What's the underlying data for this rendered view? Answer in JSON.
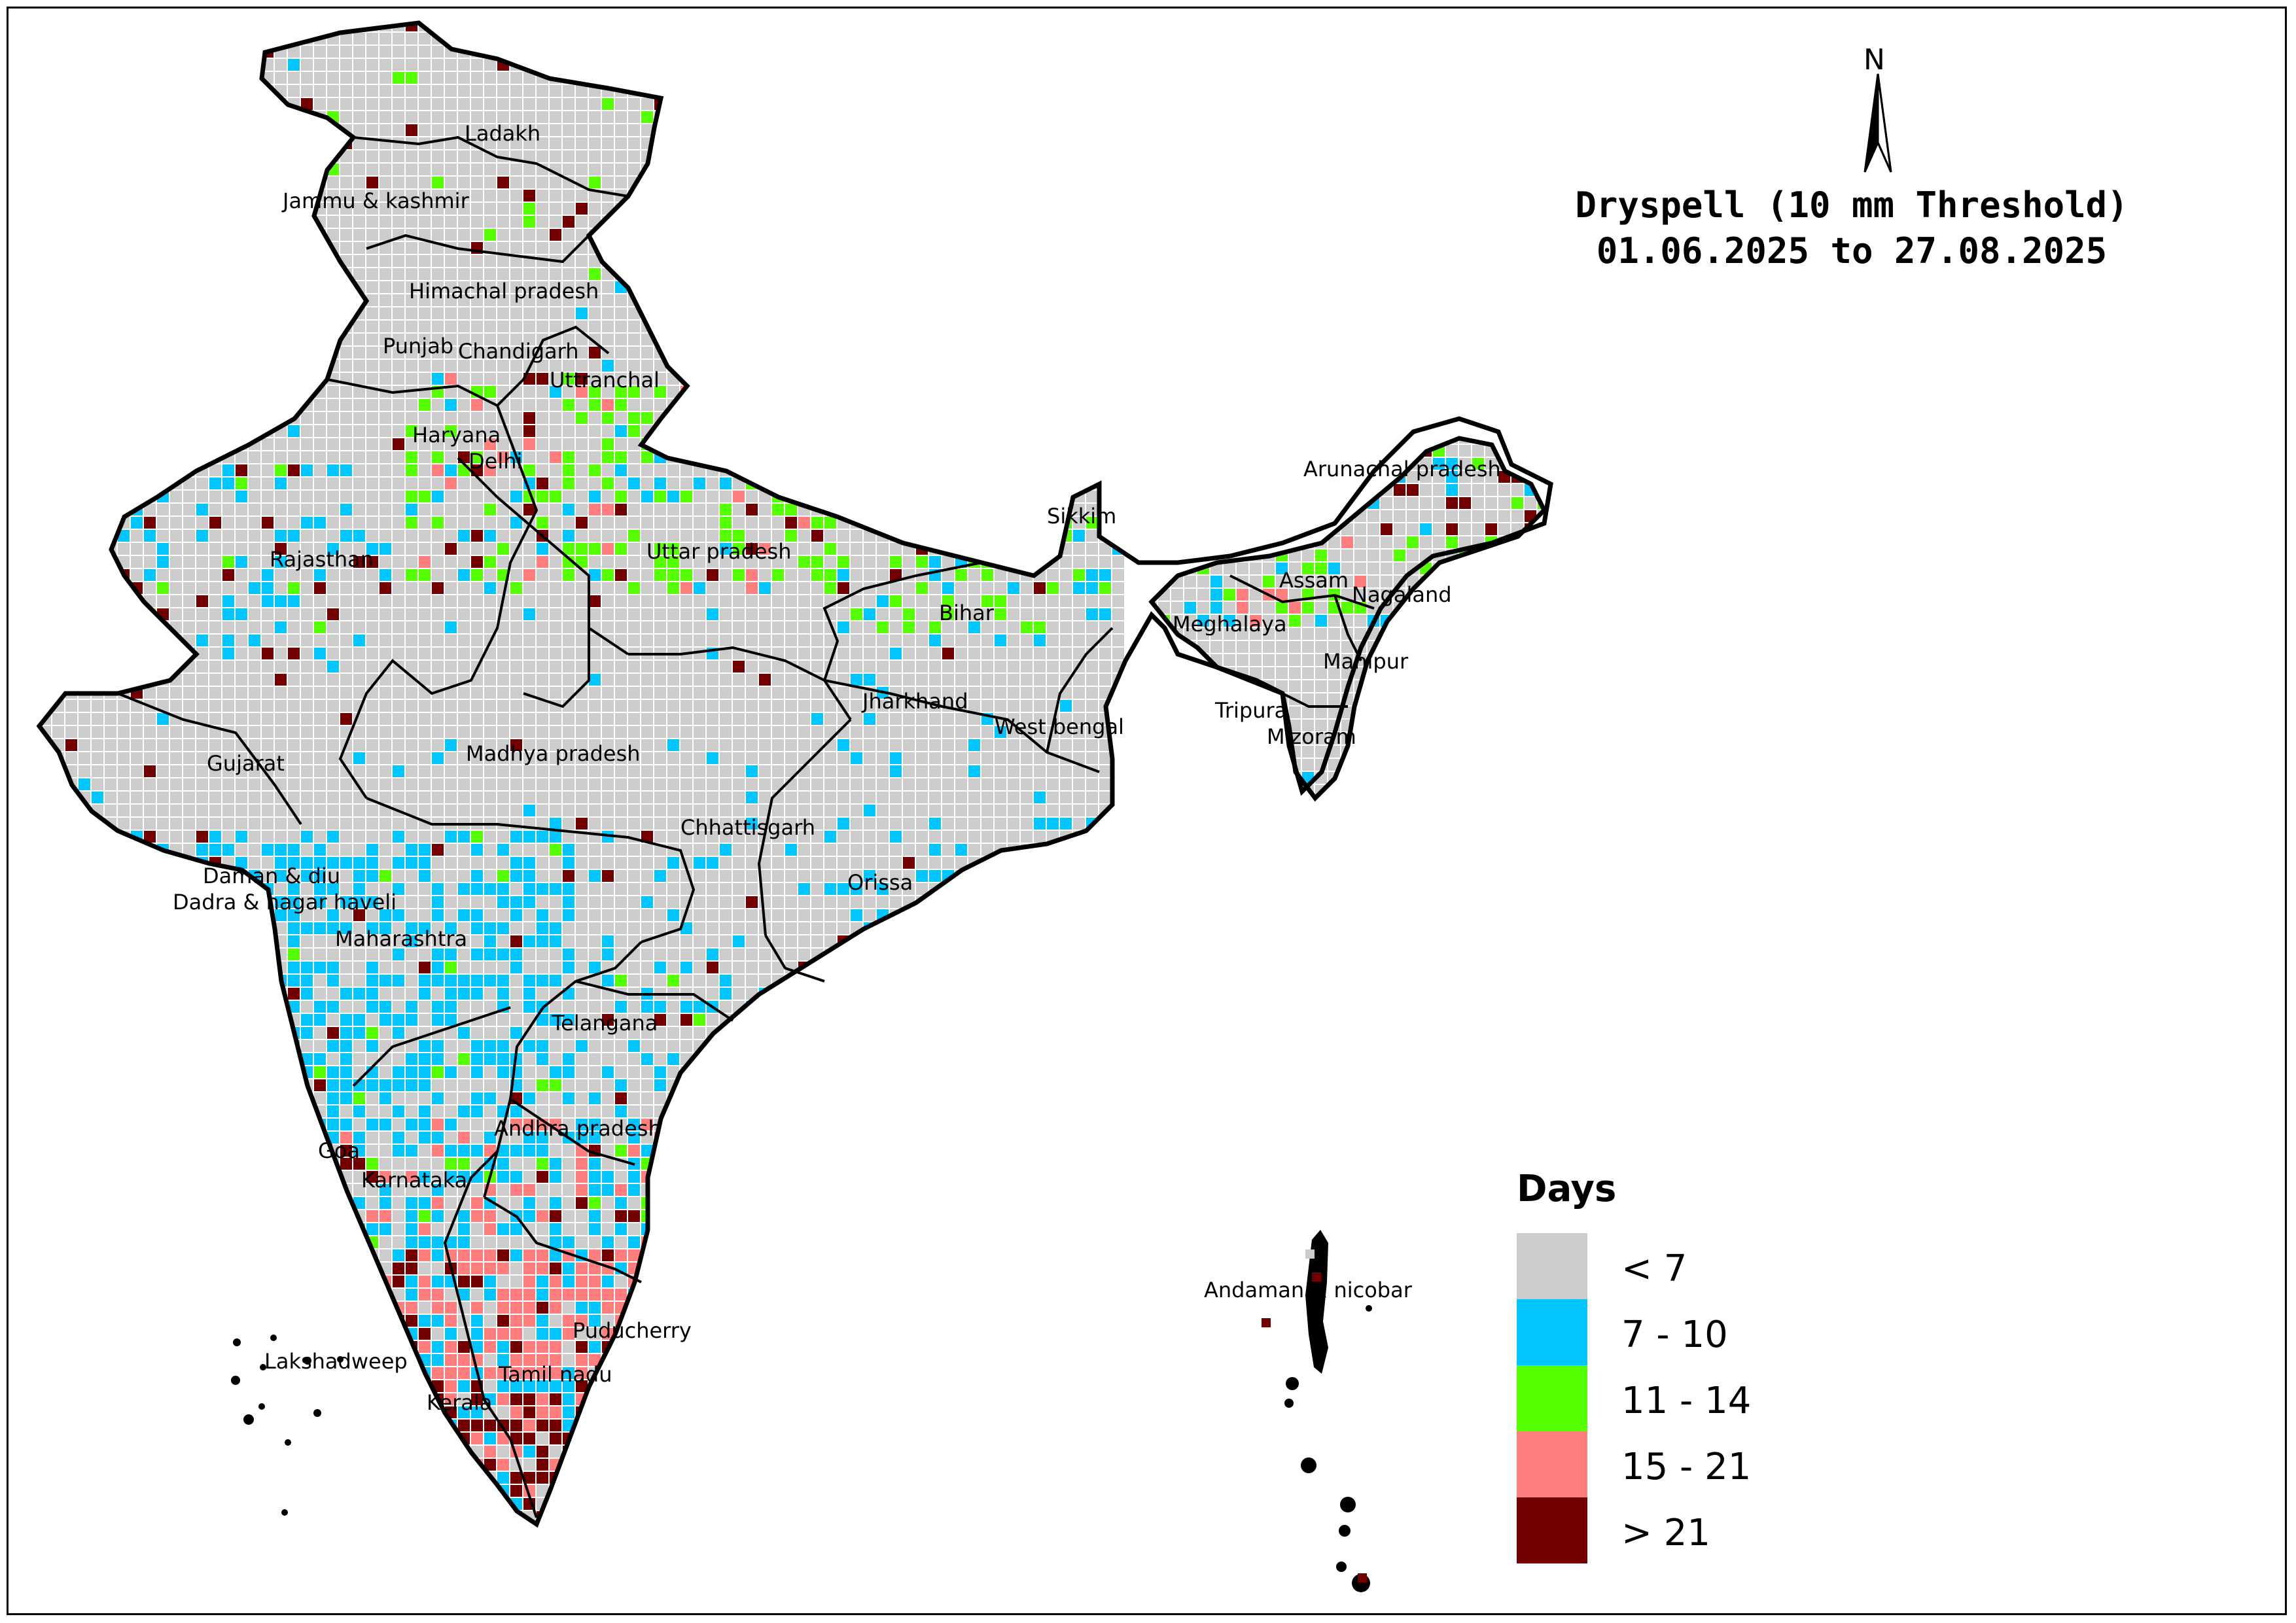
{
  "title": {
    "line1": "Dryspell (10 mm Threshold)",
    "line2": "01.06.2025 to 27.08.2025"
  },
  "north_arrow": {
    "label": "N"
  },
  "legend": {
    "title": "Days",
    "items": [
      {
        "label": "< 7",
        "color": "#cccccc"
      },
      {
        "label": "7 - 10",
        "color": "#00c5ff"
      },
      {
        "label": "11 - 14",
        "color": "#55ff00"
      },
      {
        "label": "15 - 21",
        "color": "#ff7f7f"
      },
      {
        "label": "> 21",
        "color": "#730000"
      }
    ]
  },
  "state_labels": [
    "Ladakh",
    "Jammu & kashmir",
    "Himachal pradesh",
    "Punjab",
    "Chandigarh",
    "Uttranchal",
    "Haryana",
    "Delhi",
    "Rajasthan",
    "Uttar pradesh",
    "Gujarat",
    "Madhya pradesh",
    "Bihar",
    "Jharkhand",
    "West bengal",
    "Sikkim",
    "Arunachal pradesh",
    "Assam",
    "Nagaland",
    "Meghalaya",
    "Manipur",
    "Tripura",
    "Mizoram",
    "Chhattisgarh",
    "Orissa",
    "Daman & diu",
    "Dadra & nagar haveli",
    "Maharashtra",
    "Telangana",
    "Andhra pradesh",
    "Goa",
    "Karnataka",
    "Puducherry",
    "Lakshadweep",
    "Tamil nadu",
    "Kerala",
    "Andaman & nicobar"
  ]
}
